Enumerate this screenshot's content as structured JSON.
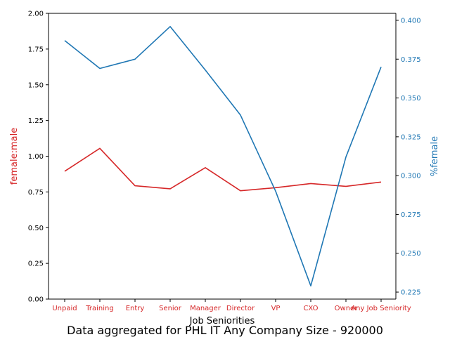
{
  "chart_data": {
    "type": "line",
    "categories": [
      "Unpaid",
      "Training",
      "Entry",
      "Senior",
      "Manager",
      "Director",
      "VP",
      "CXO",
      "Owner",
      "Any Job Seniority"
    ],
    "xlabel": "Job Seniorities",
    "caption": "Data aggregated for PHL IT Any Company Size - 920000",
    "left_axis": {
      "label": "female:male",
      "color": "#d62728",
      "ylim": [
        0.0,
        2.0
      ],
      "ticks": [
        "0.00",
        "0.25",
        "0.50",
        "0.75",
        "1.00",
        "1.25",
        "1.50",
        "1.75",
        "2.00"
      ]
    },
    "right_axis": {
      "label": "%female",
      "color": "#1f77b4",
      "ylim": [
        0.2205,
        0.4045
      ],
      "ticks": [
        "0.225",
        "0.250",
        "0.275",
        "0.300",
        "0.325",
        "0.350",
        "0.375",
        "0.400"
      ]
    },
    "series": [
      {
        "name": "female:male",
        "axis": "left",
        "color": "#d62728",
        "values": [
          0.895,
          1.055,
          0.793,
          0.772,
          0.92,
          0.758,
          0.78,
          0.809,
          0.789,
          0.819
        ]
      },
      {
        "name": "%female",
        "axis": "right",
        "color": "#1f77b4",
        "values": [
          0.387,
          0.369,
          0.375,
          0.396,
          0.368,
          0.339,
          0.29,
          0.229,
          0.312,
          0.37
        ]
      }
    ]
  }
}
